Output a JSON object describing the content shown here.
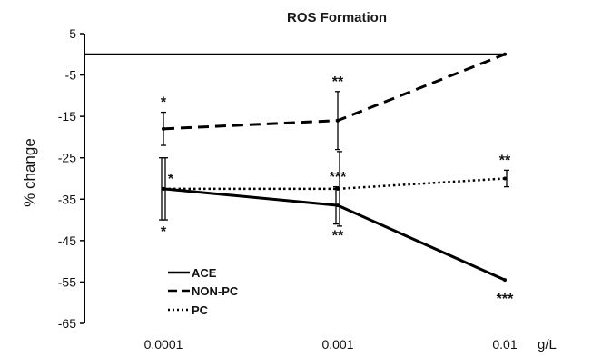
{
  "chart_data": {
    "type": "line",
    "title": "ROS Formation",
    "ylabel": "% change",
    "xlabel": "g/L",
    "categories": [
      "0.0001",
      "0.001",
      "0.01"
    ],
    "ylim": [
      -65,
      5
    ],
    "yticks": [
      5,
      -5,
      -15,
      -25,
      -35,
      -45,
      -55,
      -65
    ],
    "series": [
      {
        "name": "ACE",
        "style": "solid",
        "values": [
          -32.5,
          -36.5,
          -54.5
        ],
        "errors": [
          7.5,
          4.5,
          0
        ]
      },
      {
        "name": "NON-PC",
        "style": "dashed",
        "values": [
          -18,
          -16,
          0
        ],
        "errors": [
          4,
          7,
          0
        ]
      },
      {
        "name": "PC",
        "style": "dotted",
        "values": [
          -32.5,
          -32.5,
          -30
        ],
        "errors": [
          7.5,
          9,
          2
        ]
      }
    ],
    "annotations": [
      {
        "category": "0.0001",
        "series": "NON-PC",
        "position": "above",
        "text": "*"
      },
      {
        "category": "0.0001",
        "series": "PC",
        "position": "above",
        "text": "*"
      },
      {
        "category": "0.0001",
        "series": "ACE",
        "position": "below",
        "text": "*"
      },
      {
        "category": "0.001",
        "series": "NON-PC",
        "position": "above",
        "text": "**"
      },
      {
        "category": "0.001",
        "series": "PC",
        "position": "above",
        "text": "***"
      },
      {
        "category": "0.001",
        "series": "ACE",
        "position": "below",
        "text": "**"
      },
      {
        "category": "0.01",
        "series": "PC",
        "position": "above",
        "text": "**"
      },
      {
        "category": "0.01",
        "series": "ACE",
        "position": "below",
        "text": "***"
      }
    ],
    "legend_position": "bottom-left",
    "grid": false
  }
}
